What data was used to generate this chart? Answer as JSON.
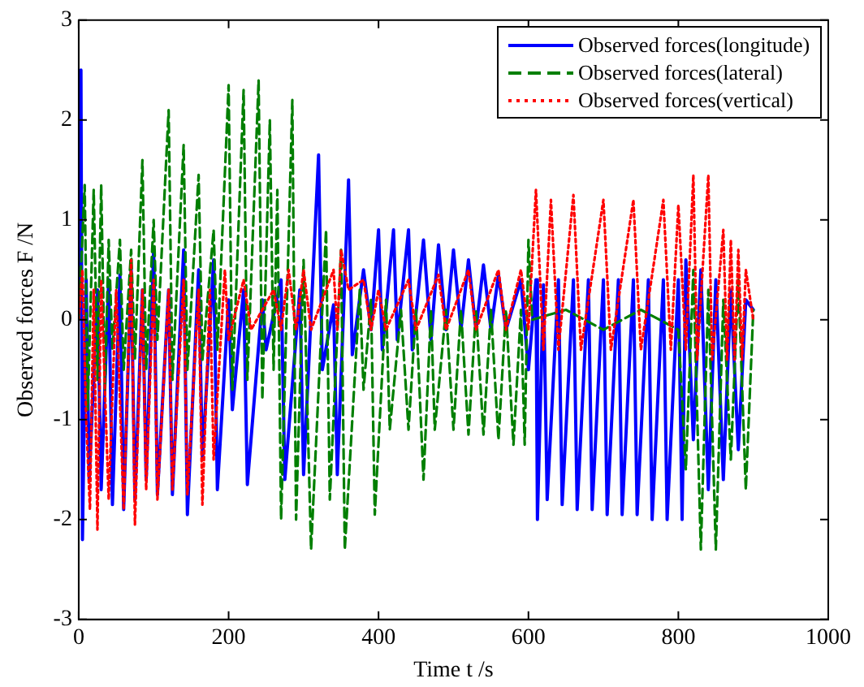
{
  "chart_data": {
    "type": "line",
    "xlabel": "Time t /s",
    "ylabel": "Observed forces F /N",
    "xlim": [
      0,
      1000
    ],
    "ylim": [
      -3,
      3
    ],
    "xticks": [
      0,
      200,
      400,
      600,
      800,
      1000
    ],
    "yticks": [
      -3,
      -2,
      -1,
      0,
      1,
      2,
      3
    ],
    "grid": false,
    "legend": "top right",
    "marker": "none",
    "series": [
      {
        "name": "Observed forces(longitude)",
        "color": "#0000ff",
        "line_style": "solid",
        "x": [
          0,
          3,
          5,
          10,
          14,
          25,
          30,
          40,
          45,
          55,
          60,
          70,
          75,
          85,
          90,
          100,
          105,
          120,
          125,
          140,
          145,
          160,
          165,
          180,
          185,
          200,
          205,
          220,
          225,
          245,
          250,
          270,
          275,
          295,
          300,
          320,
          325,
          340,
          345,
          360,
          365,
          380,
          390,
          400,
          405,
          420,
          425,
          440,
          445,
          460,
          470,
          480,
          490,
          500,
          510,
          520,
          530,
          540,
          550,
          560,
          570,
          590,
          600,
          610,
          612,
          620,
          625,
          640,
          645,
          660,
          665,
          680,
          685,
          700,
          705,
          720,
          725,
          740,
          745,
          760,
          765,
          780,
          785,
          800,
          805,
          810,
          820,
          830,
          840,
          850,
          860,
          870,
          880,
          890,
          900
        ],
        "values": [
          0.1,
          2.5,
          -2.2,
          0.4,
          -1.6,
          0.3,
          -1.7,
          0.4,
          -1.85,
          0.45,
          -1.9,
          0.5,
          -1.8,
          0.3,
          -1.6,
          0.7,
          -1.75,
          0.3,
          -1.75,
          0.7,
          -1.95,
          0.5,
          -1.4,
          0.6,
          -1.7,
          0.2,
          -0.9,
          0.3,
          -1.65,
          0.2,
          -0.3,
          0.4,
          -1.6,
          0.3,
          -1.55,
          1.65,
          -0.5,
          0.15,
          -1.55,
          1.4,
          -0.35,
          0.5,
          -0.1,
          0.9,
          -0.3,
          0.9,
          -0.2,
          0.9,
          -0.3,
          0.8,
          -0.2,
          0.75,
          -0.1,
          0.7,
          -0.1,
          0.6,
          -0.1,
          0.55,
          -0.1,
          0.45,
          -0.1,
          0.4,
          -0.5,
          0.4,
          -2.0,
          0.35,
          -1.8,
          0.4,
          -1.85,
          0.4,
          -1.9,
          0.4,
          -1.9,
          0.4,
          -1.95,
          0.4,
          -1.95,
          0.4,
          -1.95,
          0.4,
          -2.0,
          0.4,
          -2.0,
          0.4,
          -2.0,
          0.6,
          -1.2,
          0.5,
          -1.7,
          0.4,
          -1.6,
          0.3,
          -1.3,
          0.2,
          0.1
        ]
      },
      {
        "name": "Observed forces(lateral)",
        "color": "#007f00",
        "line_style": "dashed",
        "x": [
          0,
          8,
          12,
          20,
          25,
          30,
          35,
          40,
          45,
          55,
          60,
          70,
          75,
          85,
          90,
          100,
          105,
          120,
          125,
          140,
          145,
          160,
          165,
          180,
          185,
          200,
          205,
          220,
          225,
          240,
          245,
          255,
          260,
          265,
          270,
          285,
          290,
          300,
          310,
          330,
          335,
          350,
          355,
          375,
          380,
          390,
          395,
          410,
          415,
          430,
          440,
          450,
          460,
          470,
          475,
          490,
          500,
          510,
          520,
          530,
          540,
          550,
          560,
          570,
          580,
          590,
          595,
          600,
          605,
          650,
          700,
          750,
          800,
          810,
          820,
          830,
          840,
          850,
          860,
          870,
          880,
          890,
          900
        ],
        "values": [
          0,
          1.35,
          -0.9,
          1.3,
          -0.6,
          1.35,
          -0.7,
          0.8,
          -0.3,
          0.8,
          -0.5,
          0.7,
          -0.4,
          1.6,
          -0.5,
          1.0,
          -0.2,
          2.1,
          -0.6,
          1.75,
          -0.5,
          1.45,
          -0.4,
          0.9,
          -0.3,
          2.35,
          -0.7,
          2.3,
          -0.6,
          2.4,
          -0.8,
          2.0,
          -0.5,
          1.3,
          -2.0,
          2.2,
          -2.0,
          0.6,
          -2.3,
          0.9,
          -1.8,
          0.7,
          -2.3,
          0.3,
          -0.7,
          0.2,
          -1.95,
          0.2,
          -1.1,
          0.1,
          -1.1,
          0.1,
          -1.6,
          0.1,
          -1.1,
          0.1,
          -1.1,
          0.1,
          -1.15,
          0.1,
          -1.15,
          0.1,
          -1.2,
          0.1,
          -1.25,
          0.1,
          -1.25,
          0.8,
          0,
          0.1,
          -0.1,
          0.1,
          -0.1,
          -1.5,
          0.5,
          -2.3,
          0.3,
          -2.3,
          0.2,
          -1.4,
          0.4,
          -1.7,
          0.1
        ]
      },
      {
        "name": "Observed forces(vertical)",
        "color": "#ff0000",
        "line_style": "dotted",
        "x": [
          0,
          5,
          10,
          15,
          20,
          25,
          30,
          40,
          50,
          60,
          70,
          75,
          85,
          90,
          100,
          105,
          120,
          125,
          140,
          145,
          160,
          165,
          175,
          180,
          195,
          200,
          220,
          230,
          260,
          270,
          280,
          290,
          300,
          310,
          340,
          345,
          350,
          360,
          380,
          390,
          400,
          410,
          440,
          450,
          480,
          490,
          520,
          530,
          560,
          570,
          590,
          600,
          610,
          620,
          630,
          640,
          660,
          670,
          700,
          710,
          740,
          750,
          780,
          790,
          800,
          810,
          820,
          825,
          840,
          845,
          860,
          865,
          870,
          875,
          880,
          885,
          890,
          900
        ],
        "values": [
          0,
          0.5,
          -1.0,
          -1.9,
          0.3,
          -2.1,
          0.4,
          -1.8,
          0.3,
          -1.9,
          0.6,
          -2.05,
          0.3,
          -1.7,
          0.4,
          -1.8,
          0.3,
          -1.7,
          0.4,
          -1.75,
          0.3,
          -1.85,
          0.3,
          -1.4,
          0.5,
          -0.2,
          0.4,
          -0.1,
          0.3,
          -0.1,
          0.5,
          -0.1,
          0.5,
          -0.1,
          0.5,
          -0.1,
          0.7,
          0.3,
          0.4,
          -0.1,
          0.3,
          -0.1,
          0.4,
          -0.1,
          0.45,
          -0.1,
          0.5,
          -0.1,
          0.5,
          -0.1,
          0.5,
          -0.1,
          1.3,
          -0.3,
          1.2,
          -0.3,
          1.25,
          -0.3,
          1.2,
          -0.3,
          1.2,
          -0.3,
          1.2,
          -0.3,
          1.15,
          -0.3,
          1.45,
          -0.4,
          1.45,
          -0.4,
          0.9,
          -0.4,
          0.8,
          -0.4,
          0.7,
          -0.4,
          0.5,
          0
        ]
      }
    ]
  }
}
